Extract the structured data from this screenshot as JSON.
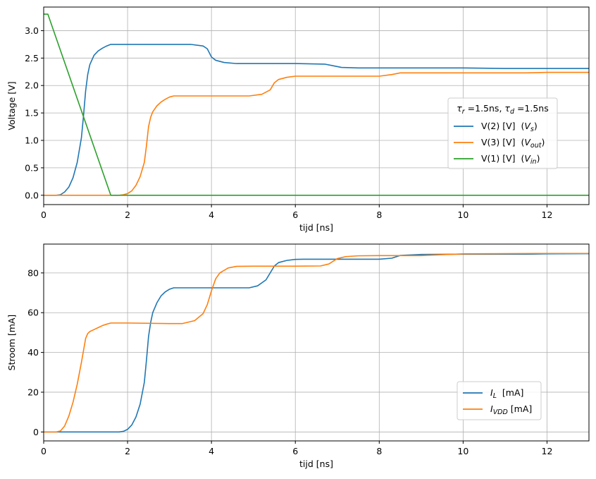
{
  "chart_data": [
    {
      "type": "line",
      "xlabel": "tijd [ns]",
      "ylabel": "Voltage [V]",
      "xlim": [
        0,
        13
      ],
      "ylim": [
        -0.17,
        3.43
      ],
      "xticks": [
        0,
        2,
        4,
        6,
        8,
        10,
        12
      ],
      "xtick_labels": [
        "0",
        "2",
        "4",
        "6",
        "8",
        "10",
        "12"
      ],
      "yticks": [
        0.0,
        0.5,
        1.0,
        1.5,
        2.0,
        2.5,
        3.0
      ],
      "ytick_labels": [
        "0.0",
        "0.5",
        "1.0",
        "1.5",
        "2.0",
        "2.5",
        "3.0"
      ],
      "grid": true,
      "legend_position": "center-right",
      "legend_title": "τr =1.5ns, τd =1.5ns",
      "series": [
        {
          "name": "V(2) [V]  (Vs)",
          "color": "#1f77b4",
          "x": [
            0,
            0.3,
            0.4,
            0.5,
            0.6,
            0.7,
            0.8,
            0.9,
            0.95,
            1.0,
            1.05,
            1.1,
            1.2,
            1.3,
            1.4,
            1.5,
            1.6,
            2.0,
            3.0,
            3.5,
            3.8,
            3.9,
            4.0,
            4.1,
            4.3,
            4.6,
            5.0,
            6.0,
            6.7,
            6.9,
            7.1,
            7.5,
            8.0,
            9.0,
            10.0,
            11.0,
            12.0,
            13.0
          ],
          "y": [
            0,
            0,
            0.01,
            0.06,
            0.15,
            0.32,
            0.6,
            1.05,
            1.45,
            1.9,
            2.2,
            2.38,
            2.55,
            2.63,
            2.68,
            2.72,
            2.75,
            2.75,
            2.75,
            2.75,
            2.72,
            2.67,
            2.52,
            2.46,
            2.42,
            2.4,
            2.4,
            2.4,
            2.39,
            2.36,
            2.33,
            2.32,
            2.32,
            2.32,
            2.32,
            2.31,
            2.31,
            2.31
          ]
        },
        {
          "name": "V(3) [V]  (Vout)",
          "color": "#ff7f0e",
          "x": [
            0,
            1.8,
            1.9,
            2.0,
            2.1,
            2.2,
            2.3,
            2.4,
            2.45,
            2.5,
            2.55,
            2.6,
            2.7,
            2.8,
            2.9,
            3.0,
            3.1,
            4.0,
            4.9,
            5.2,
            5.4,
            5.5,
            5.6,
            5.8,
            6.0,
            6.2,
            7.0,
            8.0,
            8.3,
            8.5,
            9.0,
            10.0,
            11.0,
            11.5,
            12.0,
            13.0
          ],
          "y": [
            0,
            0,
            0.01,
            0.03,
            0.08,
            0.18,
            0.34,
            0.6,
            0.9,
            1.25,
            1.42,
            1.52,
            1.63,
            1.7,
            1.75,
            1.79,
            1.81,
            1.81,
            1.81,
            1.84,
            1.92,
            2.05,
            2.11,
            2.15,
            2.17,
            2.17,
            2.17,
            2.17,
            2.2,
            2.23,
            2.23,
            2.23,
            2.23,
            2.23,
            2.24,
            2.24
          ]
        },
        {
          "name": "V(1) [V]  (Vin)",
          "color": "#2ca02c",
          "x": [
            0,
            0.1,
            1.6,
            13
          ],
          "y": [
            3.3,
            3.3,
            0,
            0
          ]
        }
      ]
    },
    {
      "type": "line",
      "xlabel": "tijd [ns]",
      "ylabel": "Stroom [mA]",
      "xlim": [
        0,
        13
      ],
      "ylim": [
        -4.5,
        94.5
      ],
      "xticks": [
        0,
        2,
        4,
        6,
        8,
        10,
        12
      ],
      "xtick_labels": [
        "0",
        "2",
        "4",
        "6",
        "8",
        "10",
        "12"
      ],
      "yticks": [
        0,
        20,
        40,
        60,
        80
      ],
      "ytick_labels": [
        "0",
        "20",
        "40",
        "60",
        "80"
      ],
      "grid": true,
      "legend_position": "lower-right",
      "series": [
        {
          "name": "IL  [mA]",
          "color": "#1f77b4",
          "x": [
            0,
            1.8,
            1.9,
            2.0,
            2.1,
            2.2,
            2.3,
            2.4,
            2.45,
            2.5,
            2.55,
            2.6,
            2.7,
            2.8,
            2.9,
            3.0,
            3.1,
            4.0,
            4.9,
            5.1,
            5.3,
            5.4,
            5.5,
            5.6,
            5.8,
            6.0,
            6.2,
            7.0,
            8.0,
            8.3,
            8.5,
            9.0,
            10.0,
            11.0,
            11.5,
            12.0,
            13.0
          ],
          "y": [
            0,
            0,
            0.3,
            1.3,
            3.5,
            7.5,
            14,
            25,
            36,
            48,
            55,
            60,
            65,
            68.5,
            70.5,
            71.8,
            72.5,
            72.5,
            72.5,
            73.5,
            76.5,
            80,
            83.5,
            85.2,
            86.3,
            86.8,
            86.9,
            86.9,
            86.9,
            87.4,
            88.8,
            89.3,
            89.4,
            89.4,
            89.4,
            89.6,
            89.7
          ]
        },
        {
          "name": "IVDD [mA]",
          "color": "#ff7f0e",
          "x": [
            0,
            0.3,
            0.4,
            0.5,
            0.6,
            0.7,
            0.8,
            0.9,
            1.0,
            1.05,
            1.1,
            1.2,
            1.3,
            1.4,
            1.5,
            1.6,
            2.0,
            3.0,
            3.3,
            3.6,
            3.8,
            3.9,
            4.0,
            4.1,
            4.2,
            4.4,
            4.6,
            5.0,
            6.0,
            6.6,
            6.8,
            7.0,
            7.2,
            7.5,
            8.0,
            9.0,
            10.0,
            11.0,
            12.0,
            13.0
          ],
          "y": [
            0,
            0,
            0.5,
            3,
            8,
            15,
            24,
            35,
            47,
            49.5,
            50.5,
            51.5,
            52.5,
            53.5,
            54.2,
            54.8,
            54.8,
            54.5,
            54.5,
            56,
            59.5,
            64,
            71,
            77,
            80,
            82.5,
            83.3,
            83.4,
            83.4,
            83.5,
            84.5,
            87.2,
            88.2,
            88.6,
            88.7,
            88.7,
            89.6,
            89.7,
            89.8,
            89.8
          ]
        }
      ]
    }
  ]
}
